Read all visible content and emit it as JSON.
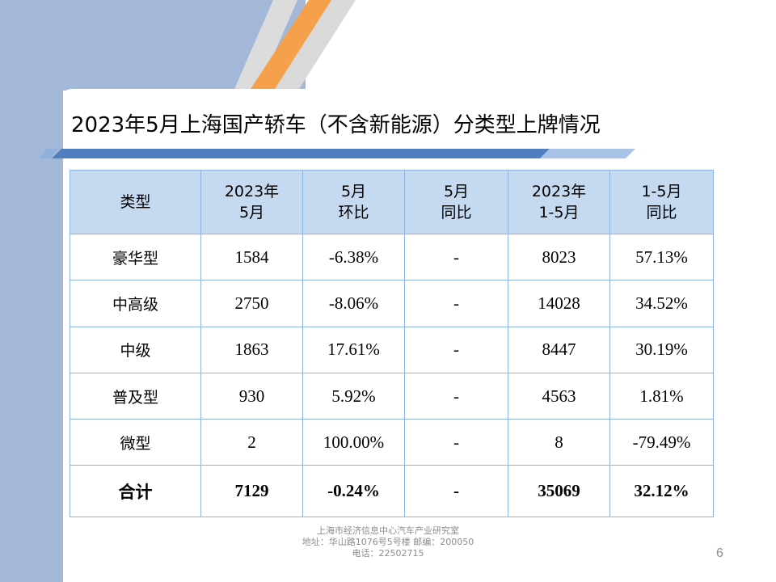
{
  "slide": {
    "title": "2023年5月上海国产轿车（不含新能源）分类型上牌情况",
    "page_number": "6"
  },
  "table": {
    "headers": [
      {
        "line1": "类型",
        "line2": ""
      },
      {
        "line1": "2023年",
        "line2": "5月"
      },
      {
        "line1": "5月",
        "line2": "环比"
      },
      {
        "line1": "5月",
        "line2": "同比"
      },
      {
        "line1": "2023年",
        "line2": "1-5月"
      },
      {
        "line1": "1-5月",
        "line2": "同比"
      }
    ],
    "rows": [
      {
        "type": "豪华型",
        "may": "1584",
        "mom": "-6.38%",
        "yoy": "-",
        "ytd": "8023",
        "ytd_yoy": "57.13%"
      },
      {
        "type": "中高级",
        "may": "2750",
        "mom": "-8.06%",
        "yoy": "-",
        "ytd": "14028",
        "ytd_yoy": "34.52%"
      },
      {
        "type": "中级",
        "may": "1863",
        "mom": "17.61%",
        "yoy": "-",
        "ytd": "8447",
        "ytd_yoy": "30.19%"
      },
      {
        "type": "普及型",
        "may": "930",
        "mom": "5.92%",
        "yoy": "-",
        "ytd": "4563",
        "ytd_yoy": "1.81%"
      },
      {
        "type": "微型",
        "may": "2",
        "mom": "100.00%",
        "yoy": "-",
        "ytd": "8",
        "ytd_yoy": "-79.49%"
      }
    ],
    "total": {
      "type": "合计",
      "may": "7129",
      "mom": "-0.24%",
      "yoy": "-",
      "ytd": "35069",
      "ytd_yoy": "32.12%"
    }
  },
  "footer": {
    "line1": "上海市经济信息中心汽车产业研究室",
    "line2": "地址：华山路1076号5号楼   邮编：200050",
    "line3": "电话：22502715"
  },
  "colors": {
    "header_fill": "#c5d9f1",
    "border": "#8db4e2",
    "side_band": "#a3b8d9",
    "accent_orange": "#f5a04a",
    "title_bar": "#4f7ec1"
  }
}
